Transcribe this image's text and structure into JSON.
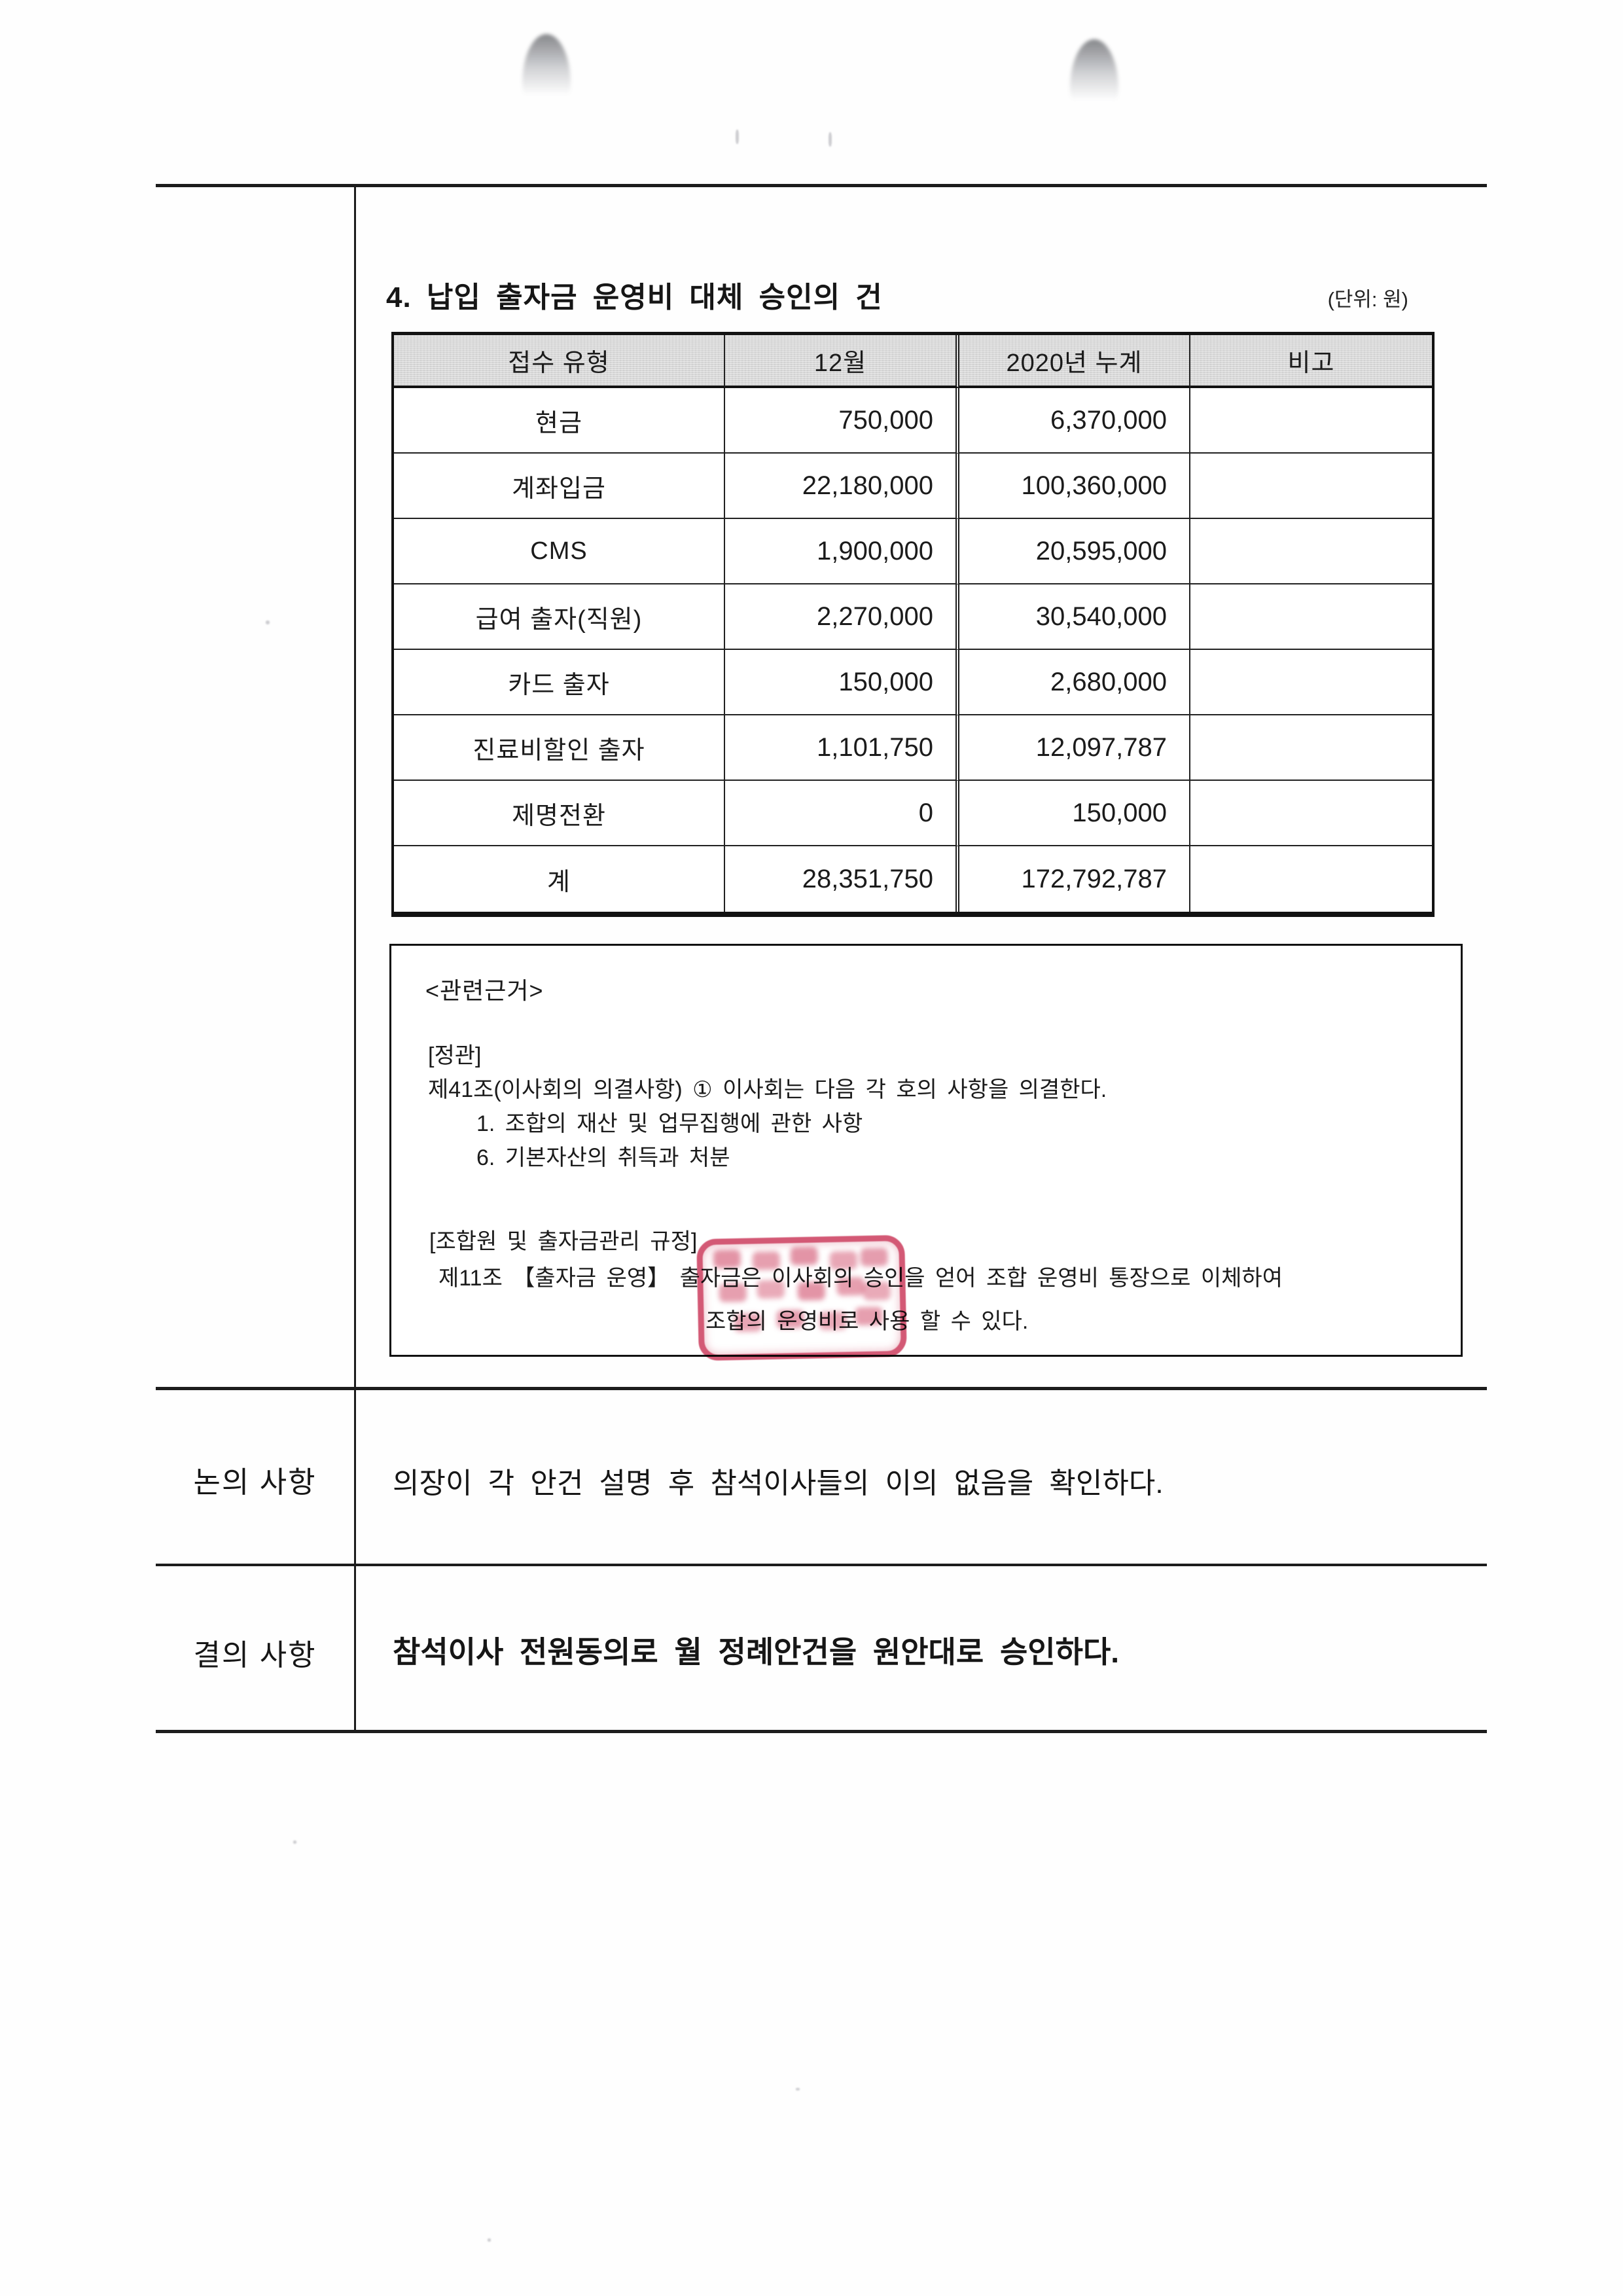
{
  "document": {
    "title": "4. 납입 출자금 운영비 대체 승인의 건",
    "unit_note": "(단위: 원)"
  },
  "table": {
    "headers": [
      "접수 유형",
      "12월",
      "2020년 누계",
      "비고"
    ],
    "rows": [
      [
        "현금",
        "750,000",
        "6,370,000",
        ""
      ],
      [
        "계좌입금",
        "22,180,000",
        "100,360,000",
        ""
      ],
      [
        "CMS",
        "1,900,000",
        "20,595,000",
        ""
      ],
      [
        "급여 출자(직원)",
        "2,270,000",
        "30,540,000",
        ""
      ],
      [
        "카드 출자",
        "150,000",
        "2,680,000",
        ""
      ],
      [
        "진료비할인 출자",
        "1,101,750",
        "12,097,787",
        ""
      ],
      [
        "제명전환",
        "0",
        "150,000",
        ""
      ],
      [
        "계",
        "28,351,750",
        "172,792,787",
        ""
      ]
    ]
  },
  "reference": {
    "heading": "<관련근거>",
    "bylaws_label": "[정관]",
    "article_41": "제41조(이사회의 의결사항) ① 이사회는 다음 각 호의 사항을 의결한다.",
    "article_41_item_1": "1. 조합의 재산 및 업무집행에 관한 사항",
    "article_41_item_6": "6. 기본자산의 취득과 처분",
    "regulation_label": "[조합원 및 출자금관리 규정]",
    "article_11_line_1": "제11조 【출자금 운영】 출자금은 이사회의 승인을 얻어 조합 운영비 통장으로 이체하여",
    "article_11_line_2": "조합의 운영비로 사용 할 수 있다."
  },
  "discussion": {
    "label": "논의 사항",
    "text": "의장이 각 안건 설명 후 참석이사들의 이의 없음을 확인하다."
  },
  "resolution": {
    "label": "결의 사항",
    "text": "참석이사 전원동의로 월 정례안건을 원안대로 승인하다."
  },
  "colors": {
    "stamp_red": "#c72a4e",
    "table_header_gray": "#d8d8d8"
  }
}
